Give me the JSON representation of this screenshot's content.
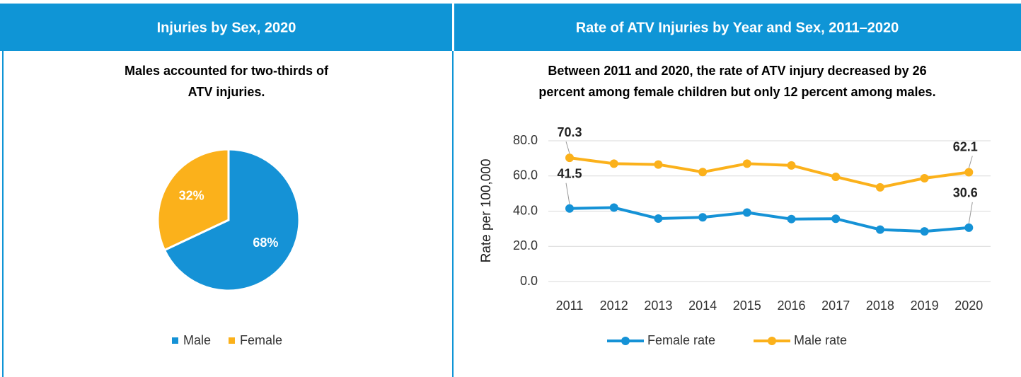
{
  "chart_data": [
    {
      "type": "pie",
      "title": "Injuries by Sex, 2020",
      "subtitle": [
        "Males accounted for two-thirds of",
        "ATV injuries."
      ],
      "categories": [
        "Male",
        "Female"
      ],
      "values": [
        68,
        32
      ],
      "value_labels": [
        "68%",
        "32%"
      ],
      "colors": [
        "#1592d6",
        "#fbb11b"
      ],
      "legend": "bottom"
    },
    {
      "type": "line",
      "title": "Rate of ATV Injuries by Year and Sex, 2011–2020",
      "subtitle": [
        "Between 2011 and 2020, the rate of ATV injury decreased by 26",
        "percent among female children but only 12 percent among males."
      ],
      "y_label": "Rate per 100,000",
      "categories": [
        "2011",
        "2012",
        "2013",
        "2014",
        "2015",
        "2016",
        "2017",
        "2018",
        "2019",
        "2020"
      ],
      "series": [
        {
          "name": "Female rate",
          "color": "#1592d6",
          "values": [
            41.5,
            42.0,
            35.8,
            36.5,
            39.2,
            35.5,
            35.7,
            29.5,
            28.5,
            30.6
          ]
        },
        {
          "name": "Male rate",
          "color": "#fbb11b",
          "values": [
            70.3,
            67.0,
            66.5,
            62.2,
            67.0,
            66.0,
            59.5,
            53.5,
            58.7,
            62.1
          ]
        }
      ],
      "ylim": [
        0,
        80
      ],
      "yticks": [
        {
          "value": 0,
          "label": "0.0"
        },
        {
          "value": 20,
          "label": "20.0"
        },
        {
          "value": 40,
          "label": "40.0"
        },
        {
          "value": 60,
          "label": "60.0"
        },
        {
          "value": 80,
          "label": "80.0"
        }
      ],
      "grid": true,
      "legend": "bottom"
    }
  ]
}
